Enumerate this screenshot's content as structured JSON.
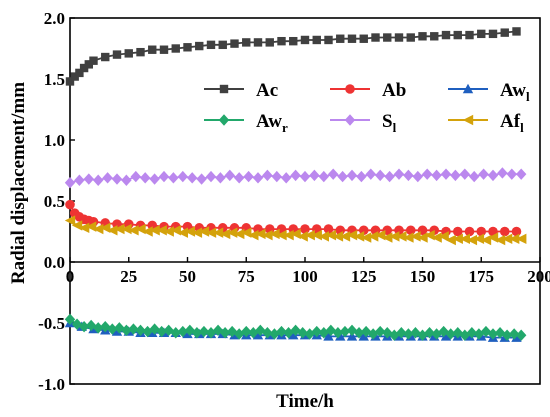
{
  "chart_data": {
    "type": "line",
    "xlabel": "Time/h",
    "ylabel": "Radial displacement/mm",
    "xlim": [
      0,
      200
    ],
    "ylim": [
      -1.0,
      2.0
    ],
    "xticks": [
      "0",
      "25",
      "50",
      "75",
      "100",
      "125",
      "150",
      "175",
      "200"
    ],
    "yticks": [
      "-1.0",
      "-0.5",
      "0.0",
      "0.5",
      "1.0",
      "1.5",
      "2.0"
    ],
    "grid": false,
    "legend_position": "top-right",
    "series": [
      {
        "name": "Ac",
        "sub": "",
        "color": "#404040",
        "marker": "square",
        "x": [
          0,
          2,
          4,
          6,
          8,
          10,
          15,
          20,
          25,
          30,
          35,
          40,
          45,
          50,
          55,
          60,
          65,
          70,
          75,
          80,
          85,
          90,
          95,
          100,
          105,
          110,
          115,
          120,
          125,
          130,
          135,
          140,
          145,
          150,
          155,
          160,
          165,
          170,
          175,
          180,
          185,
          190
        ],
        "y": [
          1.48,
          1.52,
          1.55,
          1.59,
          1.62,
          1.65,
          1.68,
          1.7,
          1.71,
          1.72,
          1.74,
          1.74,
          1.75,
          1.76,
          1.77,
          1.78,
          1.78,
          1.79,
          1.8,
          1.8,
          1.8,
          1.81,
          1.81,
          1.82,
          1.82,
          1.82,
          1.83,
          1.83,
          1.83,
          1.84,
          1.84,
          1.84,
          1.84,
          1.85,
          1.85,
          1.86,
          1.86,
          1.86,
          1.87,
          1.87,
          1.88,
          1.89
        ]
      },
      {
        "name": "Ab",
        "sub": "",
        "color": "#ee3333",
        "marker": "circle",
        "x": [
          0,
          2,
          4,
          6,
          8,
          10,
          15,
          20,
          25,
          30,
          35,
          40,
          45,
          50,
          55,
          60,
          65,
          70,
          75,
          80,
          85,
          90,
          95,
          100,
          105,
          110,
          115,
          120,
          125,
          130,
          135,
          140,
          145,
          150,
          155,
          160,
          165,
          170,
          175,
          180,
          185,
          190
        ],
        "y": [
          0.47,
          0.4,
          0.37,
          0.35,
          0.34,
          0.33,
          0.32,
          0.31,
          0.31,
          0.3,
          0.3,
          0.29,
          0.29,
          0.29,
          0.28,
          0.28,
          0.28,
          0.28,
          0.28,
          0.27,
          0.27,
          0.27,
          0.27,
          0.27,
          0.27,
          0.27,
          0.26,
          0.26,
          0.26,
          0.26,
          0.26,
          0.26,
          0.26,
          0.26,
          0.26,
          0.25,
          0.25,
          0.25,
          0.25,
          0.25,
          0.25,
          0.25
        ]
      },
      {
        "name": "Aw",
        "sub": "l",
        "color": "#1f5fbf",
        "marker": "triangle-up",
        "x": [
          0,
          5,
          10,
          15,
          20,
          25,
          30,
          35,
          40,
          45,
          50,
          55,
          60,
          65,
          70,
          75,
          80,
          85,
          90,
          95,
          100,
          105,
          110,
          115,
          120,
          125,
          130,
          135,
          140,
          145,
          150,
          155,
          160,
          165,
          170,
          175,
          180,
          185,
          190
        ],
        "y": [
          -0.5,
          -0.53,
          -0.55,
          -0.56,
          -0.57,
          -0.57,
          -0.58,
          -0.58,
          -0.58,
          -0.58,
          -0.59,
          -0.59,
          -0.59,
          -0.59,
          -0.6,
          -0.6,
          -0.6,
          -0.6,
          -0.6,
          -0.6,
          -0.6,
          -0.6,
          -0.61,
          -0.61,
          -0.61,
          -0.61,
          -0.61,
          -0.61,
          -0.61,
          -0.61,
          -0.61,
          -0.61,
          -0.61,
          -0.61,
          -0.61,
          -0.61,
          -0.62,
          -0.62,
          -0.62
        ]
      },
      {
        "name": "Aw",
        "sub": "r",
        "color": "#22a86b",
        "marker": "diamond",
        "x": [
          0,
          3,
          6,
          9,
          12,
          15,
          18,
          21,
          24,
          27,
          30,
          33,
          36,
          39,
          42,
          45,
          48,
          51,
          54,
          57,
          60,
          63,
          66,
          69,
          72,
          75,
          78,
          81,
          84,
          87,
          90,
          93,
          96,
          99,
          102,
          105,
          108,
          111,
          114,
          117,
          120,
          123,
          126,
          129,
          132,
          135,
          138,
          141,
          144,
          147,
          150,
          153,
          156,
          159,
          162,
          165,
          168,
          171,
          174,
          177,
          180,
          183,
          186,
          189,
          192
        ],
        "y": [
          -0.47,
          -0.51,
          -0.53,
          -0.52,
          -0.54,
          -0.53,
          -0.55,
          -0.54,
          -0.56,
          -0.55,
          -0.56,
          -0.57,
          -0.55,
          -0.57,
          -0.56,
          -0.58,
          -0.57,
          -0.56,
          -0.58,
          -0.57,
          -0.58,
          -0.56,
          -0.58,
          -0.57,
          -0.59,
          -0.57,
          -0.58,
          -0.56,
          -0.58,
          -0.59,
          -0.57,
          -0.58,
          -0.56,
          -0.58,
          -0.59,
          -0.57,
          -0.58,
          -0.56,
          -0.58,
          -0.57,
          -0.56,
          -0.58,
          -0.57,
          -0.59,
          -0.57,
          -0.58,
          -0.6,
          -0.58,
          -0.59,
          -0.58,
          -0.6,
          -0.58,
          -0.59,
          -0.57,
          -0.59,
          -0.58,
          -0.6,
          -0.58,
          -0.59,
          -0.57,
          -0.59,
          -0.58,
          -0.6,
          -0.59,
          -0.6
        ]
      },
      {
        "name": "S",
        "sub": "l",
        "color": "#bb88ee",
        "marker": "diamond",
        "x": [
          0,
          4,
          8,
          12,
          16,
          20,
          24,
          28,
          32,
          36,
          40,
          44,
          48,
          52,
          56,
          60,
          64,
          68,
          72,
          76,
          80,
          84,
          88,
          92,
          96,
          100,
          104,
          108,
          112,
          116,
          120,
          124,
          128,
          132,
          136,
          140,
          144,
          148,
          152,
          156,
          160,
          164,
          168,
          172,
          176,
          180,
          184,
          188,
          192
        ],
        "y": [
          0.65,
          0.67,
          0.68,
          0.67,
          0.69,
          0.68,
          0.67,
          0.7,
          0.69,
          0.68,
          0.7,
          0.69,
          0.7,
          0.69,
          0.68,
          0.7,
          0.69,
          0.71,
          0.69,
          0.7,
          0.69,
          0.71,
          0.7,
          0.69,
          0.71,
          0.7,
          0.71,
          0.7,
          0.72,
          0.7,
          0.71,
          0.7,
          0.72,
          0.71,
          0.7,
          0.72,
          0.71,
          0.7,
          0.72,
          0.71,
          0.72,
          0.71,
          0.72,
          0.7,
          0.72,
          0.71,
          0.73,
          0.72,
          0.72
        ]
      },
      {
        "name": "Af",
        "sub": "l",
        "color": "#d4a20b",
        "marker": "triangle-left",
        "x": [
          0,
          3,
          6,
          9,
          12,
          15,
          18,
          21,
          24,
          27,
          30,
          33,
          36,
          39,
          42,
          45,
          48,
          51,
          54,
          57,
          60,
          63,
          66,
          69,
          72,
          75,
          78,
          81,
          84,
          87,
          90,
          93,
          96,
          99,
          102,
          105,
          108,
          111,
          114,
          117,
          120,
          123,
          126,
          129,
          132,
          135,
          138,
          141,
          144,
          147,
          150,
          153,
          156,
          159,
          162,
          165,
          168,
          171,
          174,
          177,
          180,
          183,
          186,
          189,
          192
        ],
        "y": [
          0.34,
          0.3,
          0.28,
          0.29,
          0.27,
          0.28,
          0.26,
          0.27,
          0.27,
          0.26,
          0.27,
          0.25,
          0.26,
          0.26,
          0.25,
          0.26,
          0.24,
          0.25,
          0.24,
          0.25,
          0.24,
          0.24,
          0.23,
          0.24,
          0.23,
          0.24,
          0.22,
          0.23,
          0.22,
          0.23,
          0.22,
          0.22,
          0.23,
          0.21,
          0.22,
          0.22,
          0.21,
          0.22,
          0.21,
          0.21,
          0.22,
          0.21,
          0.2,
          0.21,
          0.22,
          0.2,
          0.21,
          0.21,
          0.2,
          0.21,
          0.2,
          0.22,
          0.2,
          0.21,
          0.18,
          0.19,
          0.19,
          0.18,
          0.19,
          0.18,
          0.2,
          0.18,
          0.19,
          0.19,
          0.19
        ]
      }
    ]
  }
}
